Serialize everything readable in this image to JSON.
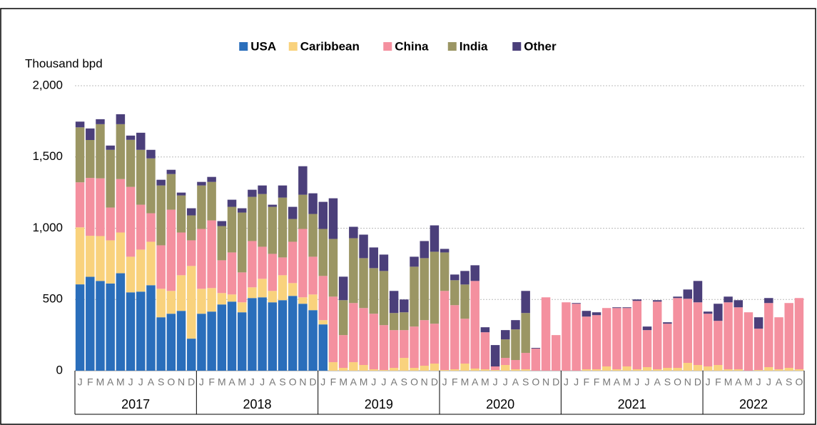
{
  "chart_data": {
    "type": "stacked_bar",
    "y_label": "Thousand bpd",
    "ylim": [
      0,
      2000
    ],
    "yticks": [
      0,
      {
        "value": 500,
        "label": "500"
      },
      {
        "value": 1000,
        "label": "1,000"
      },
      {
        "value": 1500,
        "label": "1,500"
      },
      {
        "value": 2000,
        "label": "2,000"
      }
    ],
    "grid": true,
    "legend": "top",
    "groups": [
      {
        "label": "2017",
        "months": [
          "J",
          "F",
          "M",
          "A",
          "M",
          "J",
          "J",
          "A",
          "S",
          "O",
          "N",
          "D"
        ]
      },
      {
        "label": "2018",
        "months": [
          "J",
          "F",
          "M",
          "A",
          "M",
          "J",
          "J",
          "A",
          "S",
          "O",
          "N",
          "D"
        ]
      },
      {
        "label": "2019",
        "months": [
          "J",
          "F",
          "M",
          "A",
          "M",
          "J",
          "J",
          "A",
          "S",
          "O",
          "N",
          "D"
        ]
      },
      {
        "label": "2020",
        "months": [
          "J",
          "F",
          "M",
          "A",
          "M",
          "J",
          "J",
          "A",
          "S",
          "O",
          "N",
          "D"
        ]
      },
      {
        "label": "2021",
        "months": [
          "J",
          "J",
          "F",
          "F",
          "M",
          "A",
          "M",
          "J",
          "J",
          "A",
          "S",
          "O",
          "N",
          "D"
        ]
      },
      {
        "label": "2022",
        "months": [
          "J",
          "F",
          "M",
          "A",
          "M",
          "J",
          "J",
          "A",
          "S",
          "O"
        ]
      }
    ],
    "series": [
      {
        "name": "USA",
        "color": "#2a6ebb",
        "values": [
          606,
          659,
          630,
          612,
          684,
          550,
          555,
          600,
          375,
          400,
          420,
          225,
          400,
          415,
          465,
          485,
          410,
          510,
          515,
          480,
          495,
          525,
          470,
          425,
          325,
          0,
          0,
          0,
          0,
          0,
          0,
          0,
          0,
          0,
          0,
          0,
          0,
          0,
          0,
          0,
          0,
          0,
          0,
          0,
          0,
          0,
          0,
          0,
          0,
          0,
          0,
          0,
          0,
          0,
          0,
          0,
          0,
          0,
          0,
          0,
          0,
          0,
          0,
          0,
          0,
          0,
          0,
          0,
          0,
          0,
          0,
          0
        ]
      },
      {
        "name": "Caribbean",
        "color": "#f9d27d",
        "values": [
          400,
          288,
          315,
          303,
          286,
          250,
          295,
          305,
          200,
          160,
          250,
          510,
          175,
          165,
          80,
          50,
          70,
          75,
          130,
          80,
          175,
          90,
          45,
          110,
          30,
          60,
          20,
          60,
          40,
          10,
          5,
          20,
          90,
          20,
          35,
          50,
          5,
          10,
          50,
          15,
          10,
          5,
          40,
          10,
          10,
          0,
          0,
          0,
          0,
          0,
          10,
          10,
          30,
          10,
          30,
          10,
          25,
          10,
          20,
          20,
          55,
          40,
          30,
          40,
          10,
          10,
          0,
          5,
          25,
          10,
          20,
          10
        ]
      },
      {
        "name": "China",
        "color": "#f4909f",
        "values": [
          316,
          406,
          405,
          230,
          375,
          490,
          315,
          200,
          305,
          570,
          300,
          180,
          420,
          475,
          230,
          295,
          210,
          325,
          225,
          260,
          125,
          290,
          480,
          265,
          310,
          460,
          230,
          415,
          400,
          390,
          315,
          265,
          195,
          290,
          320,
          280,
          555,
          450,
          315,
          615,
          260,
          25,
          50,
          65,
          115,
          155,
          515,
          250,
          480,
          470,
          370,
          380,
          410,
          430,
          410,
          480,
          260,
          475,
          310,
          490,
          450,
          440,
          370,
          310,
          470,
          435,
          410,
          290,
          450,
          365,
          455,
          500
        ]
      },
      {
        "name": "India",
        "color": "#9b9664",
        "values": [
          386,
          266,
          380,
          405,
          385,
          330,
          385,
          385,
          420,
          250,
          260,
          175,
          305,
          270,
          240,
          320,
          420,
          310,
          370,
          330,
          420,
          160,
          240,
          300,
          330,
          405,
          245,
          455,
          350,
          320,
          380,
          120,
          125,
          420,
          435,
          505,
          270,
          175,
          240,
          0,
          0,
          0,
          130,
          215,
          280,
          0,
          0,
          0,
          0,
          0,
          0,
          0,
          0,
          0,
          0,
          0,
          0,
          0,
          0,
          0,
          0,
          0,
          0,
          0,
          0,
          0,
          0,
          0,
          0,
          0,
          0,
          0
        ]
      },
      {
        "name": "Other",
        "color": "#4b3f7a",
        "values": [
          40,
          81,
          35,
          30,
          70,
          30,
          120,
          60,
          40,
          30,
          20,
          50,
          25,
          35,
          35,
          50,
          30,
          50,
          60,
          15,
          85,
          85,
          200,
          145,
          190,
          285,
          165,
          80,
          165,
          145,
          115,
          155,
          90,
          70,
          120,
          185,
          25,
          40,
          95,
          110,
          35,
          150,
          65,
          65,
          155,
          5,
          0,
          0,
          0,
          5,
          40,
          20,
          0,
          5,
          5,
          10,
          25,
          10,
          10,
          10,
          65,
          150,
          15,
          120,
          40,
          50,
          0,
          80,
          35,
          0,
          0,
          0
        ]
      }
    ]
  }
}
